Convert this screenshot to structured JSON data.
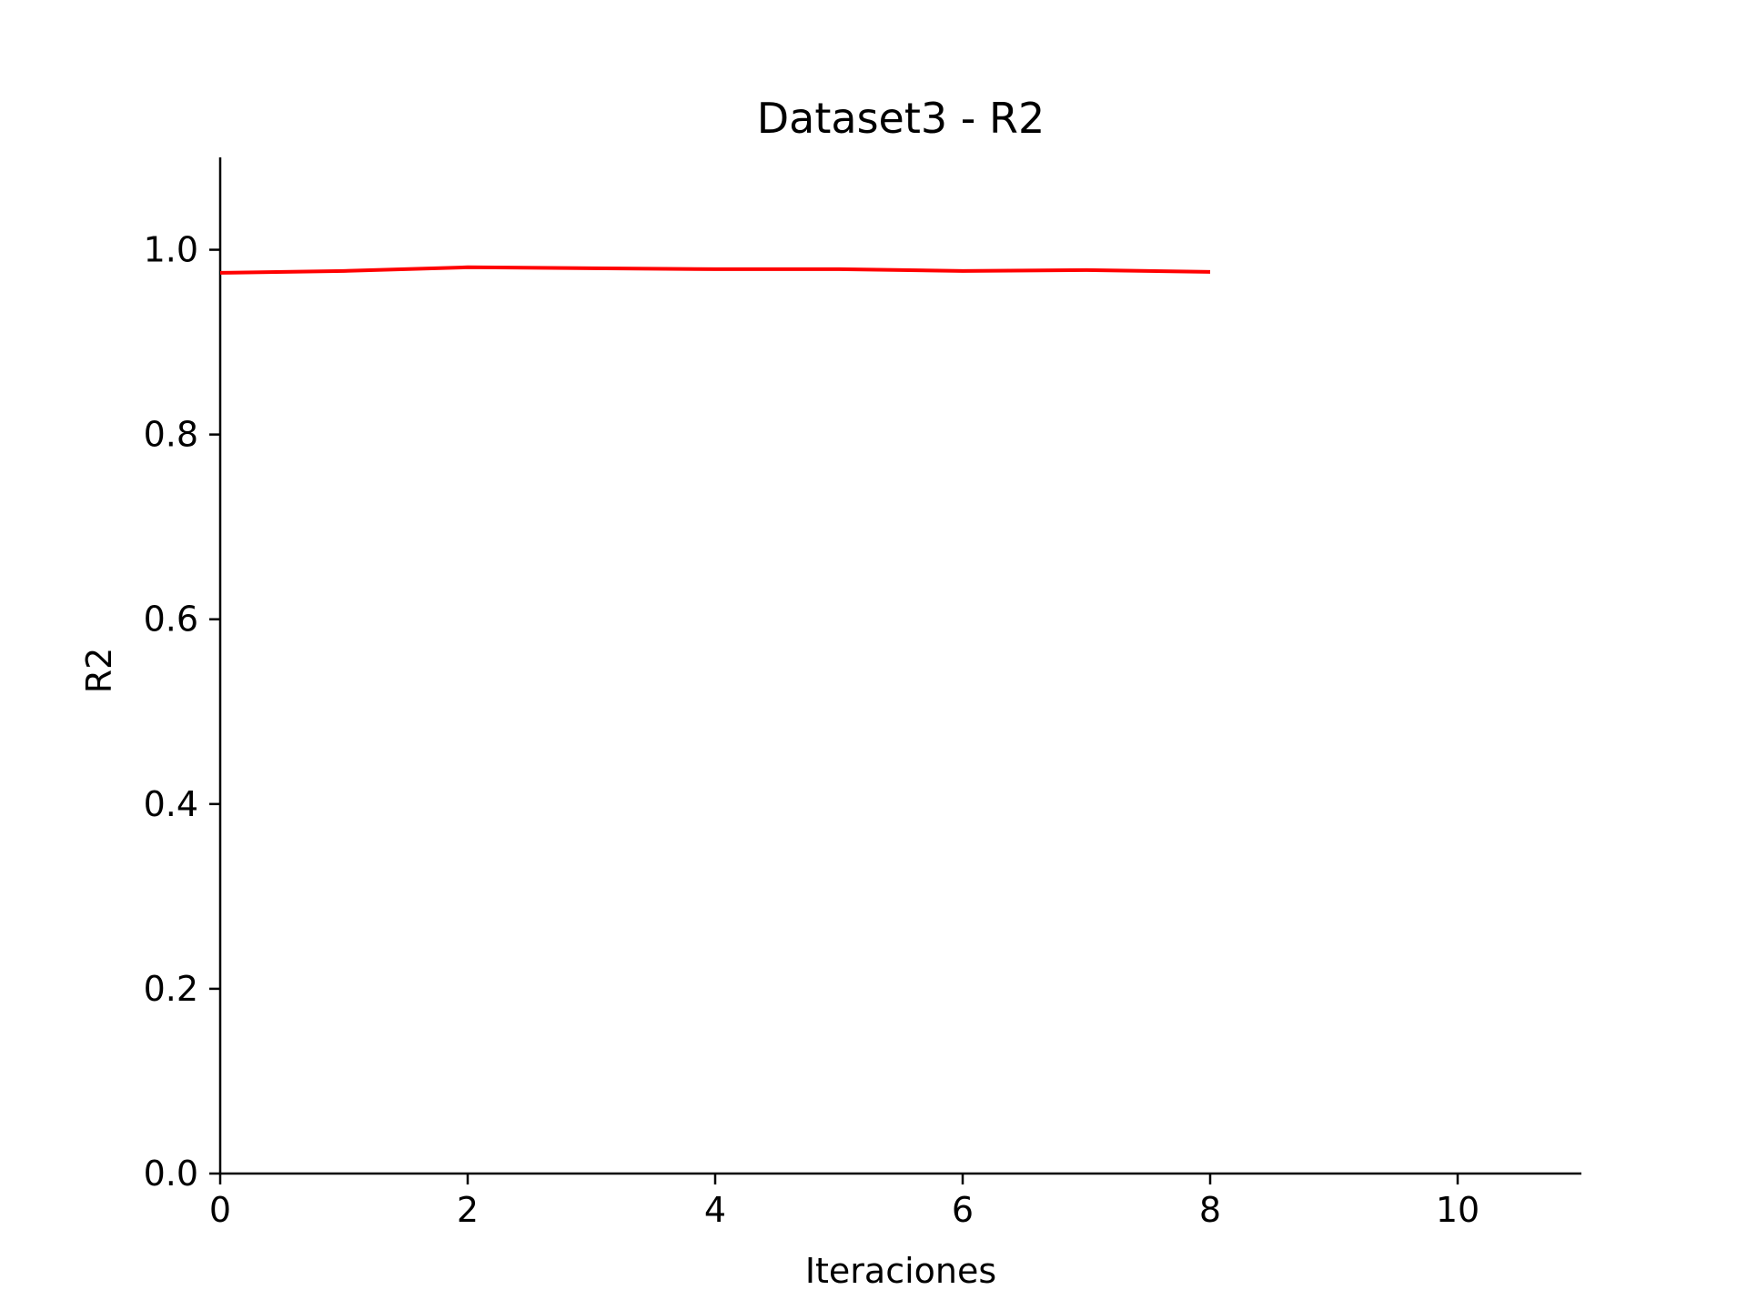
{
  "chart_data": {
    "type": "line",
    "title": "Dataset3 - R2",
    "xlabel": "Iteraciones",
    "ylabel": "R2",
    "xlim": [
      0,
      11
    ],
    "ylim": [
      0,
      1.1
    ],
    "xticks": [
      0,
      2,
      4,
      6,
      8,
      10
    ],
    "xtick_labels": [
      "0",
      "2",
      "4",
      "6",
      "8",
      "10"
    ],
    "yticks": [
      0.0,
      0.2,
      0.4,
      0.6,
      0.8,
      1.0
    ],
    "ytick_labels": [
      "0.0",
      "0.2",
      "0.4",
      "0.6",
      "0.8",
      "1.0"
    ],
    "grid": false,
    "series": [
      {
        "color": "#ff0000",
        "x": [
          0,
          1,
          2,
          3,
          4,
          5,
          6,
          7,
          8
        ],
        "y": [
          0.975,
          0.977,
          0.981,
          0.98,
          0.979,
          0.979,
          0.977,
          0.978,
          0.976
        ]
      }
    ]
  }
}
